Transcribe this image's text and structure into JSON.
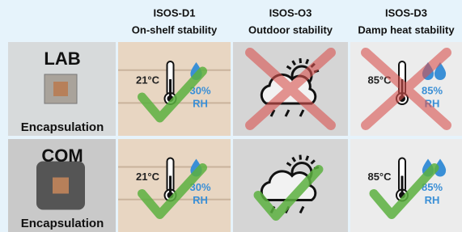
{
  "columns": [
    {
      "code": "ISOS-D1",
      "label": "On-shelf stability"
    },
    {
      "code": "ISOS-O3",
      "label": "Outdoor stability"
    },
    {
      "code": "ISOS-D3",
      "label": "Damp heat stability"
    }
  ],
  "rows": [
    {
      "name": "LAB",
      "label": "Encapsulation",
      "shelf": {
        "temperature": "21°C",
        "humidity": "30%",
        "unit": "RH"
      },
      "damp": {
        "temperature": "85°C",
        "humidity": "85%",
        "unit": "RH"
      }
    },
    {
      "name": "COM",
      "label": "Encapsulation",
      "shelf": {
        "temperature": "21°C",
        "humidity": "30%",
        "unit": "RH"
      },
      "damp": {
        "temperature": "85°C",
        "humidity": "85%",
        "unit": "RH"
      }
    }
  ]
}
